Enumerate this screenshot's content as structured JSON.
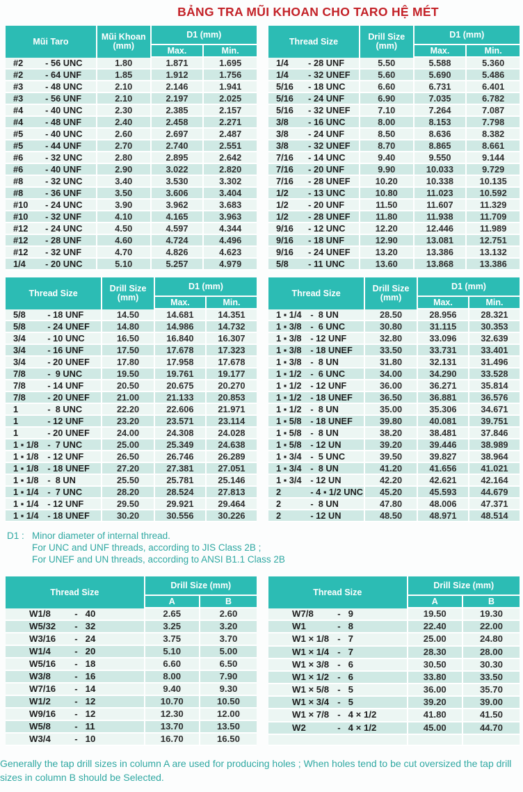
{
  "title": "BẢNG TRA MŨI KHOAN CHO TARO HỆ MÉT",
  "colors": {
    "header_teal": "#2cbcb4",
    "row_light": "#ecf6f3",
    "row_dark": "#cfe9e4",
    "title_red": "#c32127",
    "note_teal": "#2fa8a2"
  },
  "section1": {
    "left": {
      "headers": {
        "thread": "Mũi Taro",
        "drill": "Mũi Khoan (mm)",
        "d1": "D1 (mm)",
        "max": "Max.",
        "min": "Min."
      },
      "rows": [
        [
          "#2",
          "- 56 UNC",
          "1.80",
          "1.871",
          "1.695"
        ],
        [
          "#2",
          "- 64 UNF",
          "1.85",
          "1.912",
          "1.756"
        ],
        [
          "#3",
          "- 48 UNC",
          "2.10",
          "2.146",
          "1.941"
        ],
        [
          "#3",
          "- 56 UNF",
          "2.10",
          "2.197",
          "2.025"
        ],
        [
          "#4",
          "- 40 UNC",
          "2.30",
          "2.385",
          "2.157"
        ],
        [
          "#4",
          "- 48 UNF",
          "2.40",
          "2.458",
          "2.271"
        ],
        [
          "#5",
          "- 40 UNC",
          "2.60",
          "2.697",
          "2.487"
        ],
        [
          "#5",
          "- 44 UNF",
          "2.70",
          "2.740",
          "2.551"
        ],
        [
          "#6",
          "- 32 UNC",
          "2.80",
          "2.895",
          "2.642"
        ],
        [
          "#6",
          "- 40 UNF",
          "2.90",
          "3.022",
          "2.820"
        ],
        [
          "#8",
          "- 32 UNC",
          "3.40",
          "3.530",
          "3.302"
        ],
        [
          "#8",
          "- 36 UNF",
          "3.50",
          "3.606",
          "3.404"
        ],
        [
          "#10",
          "- 24 UNC",
          "3.90",
          "3.962",
          "3.683"
        ],
        [
          "#10",
          "- 32 UNF",
          "4.10",
          "4.165",
          "3.963"
        ],
        [
          "#12",
          "- 24 UNC",
          "4.50",
          "4.597",
          "4.344"
        ],
        [
          "#12",
          "- 28 UNF",
          "4.60",
          "4.724",
          "4.496"
        ],
        [
          "#12",
          "- 32 UNF",
          "4.70",
          "4.826",
          "4.623"
        ],
        [
          "1/4",
          "- 20 UNC",
          "5.10",
          "5.257",
          "4.979"
        ]
      ]
    },
    "right": {
      "headers": {
        "thread": "Thread Size",
        "drill": "Drill Size (mm)",
        "d1": "D1 (mm)",
        "max": "Max.",
        "min": "Min."
      },
      "rows": [
        [
          "1/4",
          "- 28 UNF",
          "5.50",
          "5.588",
          "5.360"
        ],
        [
          "1/4",
          "- 32 UNEF",
          "5.60",
          "5.690",
          "5.486"
        ],
        [
          "5/16",
          "- 18 UNC",
          "6.60",
          "6.731",
          "6.401"
        ],
        [
          "5/16",
          "- 24 UNF",
          "6.90",
          "7.035",
          "6.782"
        ],
        [
          "5/16",
          "- 32 UNEF",
          "7.10",
          "7.264",
          "7.087"
        ],
        [
          "3/8",
          "- 16 UNC",
          "8.00",
          "8.153",
          "7.798"
        ],
        [
          "3/8",
          "- 24 UNF",
          "8.50",
          "8.636",
          "8.382"
        ],
        [
          "3/8",
          "- 32 UNEF",
          "8.70",
          "8.865",
          "8.661"
        ],
        [
          "7/16",
          "- 14 UNC",
          "9.40",
          "9.550",
          "9.144"
        ],
        [
          "7/16",
          "- 20 UNF",
          "9.90",
          "10.033",
          "9.729"
        ],
        [
          "7/16",
          "- 28 UNEF",
          "10.20",
          "10.338",
          "10.135"
        ],
        [
          "1/2",
          "- 13 UNC",
          "10.80",
          "11.023",
          "10.592"
        ],
        [
          "1/2",
          "- 20 UNF",
          "11.50",
          "11.607",
          "11.329"
        ],
        [
          "1/2",
          "- 28 UNEF",
          "11.80",
          "11.938",
          "11.709"
        ],
        [
          "9/16",
          "- 12 UNC",
          "12.20",
          "12.446",
          "11.989"
        ],
        [
          "9/16",
          "- 18 UNF",
          "12.90",
          "13.081",
          "12.751"
        ],
        [
          "9/16",
          "- 24 UNEF",
          "13.20",
          "13.386",
          "13.132"
        ],
        [
          "5/8",
          "- 11 UNC",
          "13.60",
          "13.868",
          "13.386"
        ]
      ]
    }
  },
  "section2": {
    "left": {
      "headers": {
        "thread": "Thread Size",
        "drill": "Drill Size (mm)",
        "d1": "D1 (mm)",
        "max": "Max.",
        "min": "Min."
      },
      "rows": [
        [
          "5/8",
          "- 18 UNF",
          "14.50",
          "14.681",
          "14.351"
        ],
        [
          "5/8",
          "- 24 UNEF",
          "14.80",
          "14.986",
          "14.732"
        ],
        [
          "3/4",
          "- 10 UNC",
          "16.50",
          "16.840",
          "16.307"
        ],
        [
          "3/4",
          "- 16 UNF",
          "17.50",
          "17.678",
          "17.323"
        ],
        [
          "3/4",
          "- 20 UNEF",
          "17.80",
          "17.958",
          "17.678"
        ],
        [
          "7/8",
          "-  9 UNC",
          "19.50",
          "19.761",
          "19.177"
        ],
        [
          "7/8",
          "- 14 UNF",
          "20.50",
          "20.675",
          "20.270"
        ],
        [
          "7/8",
          "- 20 UNEF",
          "21.00",
          "21.133",
          "20.853"
        ],
        [
          "1",
          "-  8 UNC",
          "22.20",
          "22.606",
          "21.971"
        ],
        [
          "1",
          "- 12 UNF",
          "23.20",
          "23.571",
          "23.114"
        ],
        [
          "1",
          "- 20 UNEF",
          "24.00",
          "24.308",
          "24.028"
        ],
        [
          "1 ▪ 1/8",
          "-  7 UNC",
          "25.00",
          "25.349",
          "24.638"
        ],
        [
          "1 ▪ 1/8",
          "- 12 UNF",
          "26.50",
          "26.746",
          "26.289"
        ],
        [
          "1 ▪ 1/8",
          "- 18 UNEF",
          "27.20",
          "27.381",
          "27.051"
        ],
        [
          "1 ▪ 1/8",
          "-  8 UN",
          "25.50",
          "25.781",
          "25.146"
        ],
        [
          "1 ▪ 1/4",
          "-  7 UNC",
          "28.20",
          "28.524",
          "27.813"
        ],
        [
          "1 ▪ 1/4",
          "- 12 UNF",
          "29.50",
          "29.921",
          "29.464"
        ],
        [
          "1 ▪ 1/4",
          "- 18 UNEF",
          "30.20",
          "30.556",
          "30.226"
        ]
      ]
    },
    "right": {
      "headers": {
        "thread": "Thread Size",
        "drill": "Drill Size (mm)",
        "d1": "D1 (mm)",
        "max": "Max.",
        "min": "Min."
      },
      "rows": [
        [
          "1 ▪ 1/4",
          "-  8 UN",
          "28.50",
          "28.956",
          "28.321"
        ],
        [
          "1 ▪ 3/8",
          "-  6 UNC",
          "30.80",
          "31.115",
          "30.353"
        ],
        [
          "1 ▪ 3/8",
          "- 12 UNF",
          "32.80",
          "33.096",
          "32.639"
        ],
        [
          "1 ▪ 3/8",
          "- 18 UNEF",
          "33.50",
          "33.731",
          "33.401"
        ],
        [
          "1 ▪ 3/8",
          "-  8 UN",
          "31.80",
          "32.131",
          "31.496"
        ],
        [
          "1 ▪ 1/2",
          "-  6 UNC",
          "34.00",
          "34.290",
          "33.528"
        ],
        [
          "1 ▪ 1/2",
          "- 12 UNF",
          "36.00",
          "36.271",
          "35.814"
        ],
        [
          "1 ▪ 1/2",
          "- 18 UNEF",
          "36.50",
          "36.881",
          "36.576"
        ],
        [
          "1 ▪ 1/2",
          "-  8 UN",
          "35.00",
          "35.306",
          "34.671"
        ],
        [
          "1 ▪ 5/8",
          "- 18 UNEF",
          "39.80",
          "40.081",
          "39.751"
        ],
        [
          "1 ▪ 5/8",
          "-  8 UN",
          "38.20",
          "38.481",
          "37.846"
        ],
        [
          "1 ▪ 5/8",
          "- 12 UN",
          "39.20",
          "39.446",
          "38.989"
        ],
        [
          "1 ▪ 3/4",
          "-  5 UNC",
          "39.50",
          "39.827",
          "38.964"
        ],
        [
          "1 ▪ 3/4",
          "-  8 UN",
          "41.20",
          "41.656",
          "41.021"
        ],
        [
          "1 ▪ 3/4",
          "- 12 UN",
          "42.20",
          "42.621",
          "42.164"
        ],
        [
          "2",
          "- 4 ▪ 1/2 UNC",
          "45.20",
          "45.593",
          "44.679"
        ],
        [
          "2",
          "-  8 UN",
          "47.80",
          "48.006",
          "47.371"
        ],
        [
          "2",
          "- 12 UN",
          "48.50",
          "48.971",
          "48.514"
        ]
      ]
    }
  },
  "d1_note": {
    "label": "D1 :",
    "lines": [
      "Minor diameter of internal thread.",
      "For UNC and UNF threads, according to JIS Class 2B ;",
      "For UNEF and UN threads, according to ANSI B1.1 Class 2B"
    ]
  },
  "section3": {
    "left": {
      "headers": {
        "thread": "Thread Size",
        "drill": "Drill Size (mm)",
        "a": "A",
        "b": "B"
      },
      "rows": [
        [
          "W1/8",
          "-   40",
          "2.65",
          "2.60"
        ],
        [
          "W5/32",
          "-   32",
          "3.25",
          "3.20"
        ],
        [
          "W3/16",
          "-   24",
          "3.75",
          "3.70"
        ],
        [
          "W1/4",
          "-   20",
          "5.10",
          "5.00"
        ],
        [
          "W5/16",
          "-   18",
          "6.60",
          "6.50"
        ],
        [
          "W3/8",
          "-   16",
          "8.00",
          "7.90"
        ],
        [
          "W7/16",
          "-   14",
          "9.40",
          "9.30"
        ],
        [
          "W1/2",
          "-   12",
          "10.70",
          "10.50"
        ],
        [
          "W9/16",
          "-   12",
          "12.30",
          "12.00"
        ],
        [
          "W5/8",
          "-   11",
          "13.70",
          "13.50"
        ],
        [
          "W3/4",
          "-   10",
          "16.70",
          "16.50"
        ]
      ]
    },
    "right": {
      "headers": {
        "thread": "Thread Size",
        "drill": "Drill Size (mm)",
        "a": "A",
        "b": "B"
      },
      "rows": [
        [
          "W7/8",
          "-   9",
          "19.50",
          "19.30"
        ],
        [
          "W1",
          "-   8",
          "22.40",
          "22.00"
        ],
        [
          "W1 × 1/8",
          "-   7",
          "25.00",
          "24.80"
        ],
        [
          "W1 × 1/4",
          "-   7",
          "28.30",
          "28.00"
        ],
        [
          "W1 × 3/8",
          "-   6",
          "30.50",
          "30.30"
        ],
        [
          "W1 × 1/2",
          "-   6",
          "33.80",
          "33.50"
        ],
        [
          "W1 × 5/8",
          "-   5",
          "36.00",
          "35.70"
        ],
        [
          "W1 × 3/4",
          "-   5",
          "39.20",
          "39.00"
        ],
        [
          "W1 × 7/8",
          "-   4 × 1/2",
          "41.80",
          "41.50"
        ],
        [
          "W2",
          "-   4 × 1/2",
          "45.00",
          "44.70"
        ],
        [
          "",
          "",
          "",
          ""
        ]
      ]
    }
  },
  "footer_note": {
    "lines": [
      "Generally the tap drill sizes in column A are used for producing holes ; When holes tend to be cut oversized the tap drill",
      "sizes in column B should be Selected."
    ]
  }
}
